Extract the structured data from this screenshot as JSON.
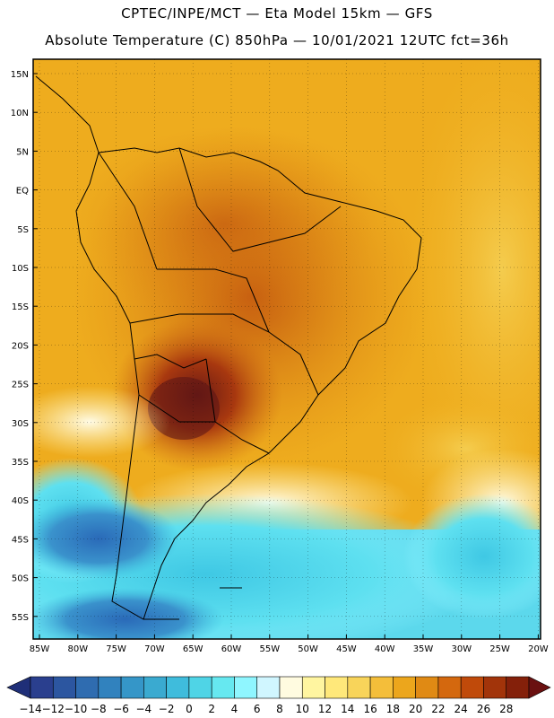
{
  "title_line1": "CPTEC/INPE/MCT —   Eta Model 15km — GFS",
  "title_line2": "Absolute Temperature (C) 850hPa — 10/01/2021 12UTC fct=36h",
  "lat_ticks": [
    "15N",
    "10N",
    "5N",
    "EQ",
    "5S",
    "10S",
    "15S",
    "20S",
    "25S",
    "30S",
    "35S",
    "40S",
    "45S",
    "50S",
    "55S"
  ],
  "lon_ticks": [
    "85W",
    "80W",
    "75W",
    "70W",
    "65W",
    "60W",
    "55W",
    "50W",
    "45W",
    "40W",
    "35W",
    "30W",
    "25W",
    "20W"
  ],
  "colorbar": {
    "labels": [
      "-14",
      "-12",
      "-10",
      "-8",
      "-6",
      "-4",
      "-2",
      "0",
      "2",
      "4",
      "6",
      "8",
      "10",
      "12",
      "14",
      "16",
      "18",
      "20",
      "22",
      "24",
      "26",
      "28"
    ],
    "colors": [
      "#2a3f8e",
      "#2c56a0",
      "#2f6cb0",
      "#3182be",
      "#3596c8",
      "#3aaad0",
      "#3fbcdc",
      "#4fd4e6",
      "#66e8f0",
      "#8ff6ff",
      "#d0f6ff",
      "#fffbe0",
      "#fff5a0",
      "#ffe87a",
      "#f8d45a",
      "#f4be3a",
      "#eca61c",
      "#e08a14",
      "#d4680e",
      "#c04a0a",
      "#a2340a",
      "#84200a"
    ],
    "low_color": "#1f2f78",
    "high_color": "#6a1010"
  }
}
